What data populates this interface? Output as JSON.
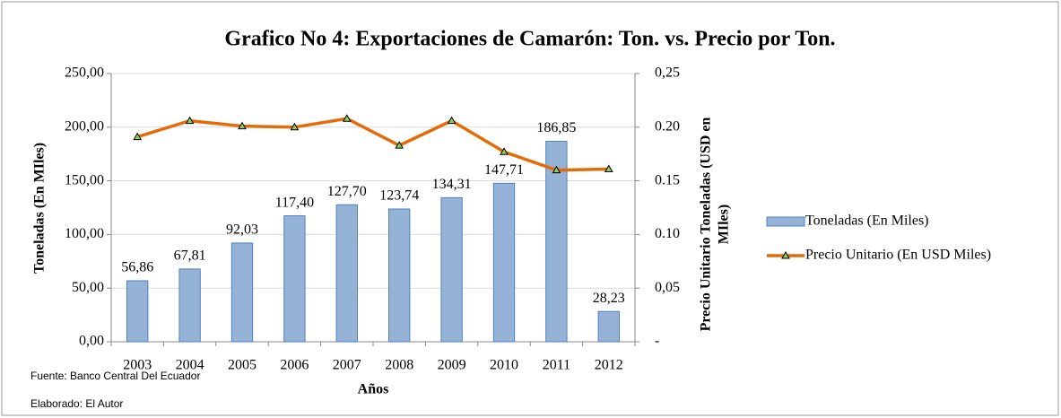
{
  "chart_data": {
    "type": "bar",
    "title": "Grafico No 4: Exportaciones de Camarón: Ton. vs. Precio por Ton.",
    "ylabel": "Toneladas (En MIles)",
    "y2label": [
      "Precio Unitario Toneladas (USD en",
      "MIles)"
    ],
    "xlabel": "Años",
    "annotations": [
      "Fuente: Banco Central Del Ecuador",
      "Elaborado: El Autor"
    ],
    "categories": [
      "2003",
      "2004",
      "2005",
      "2006",
      "2007",
      "2008",
      "2009",
      "2010",
      "2011",
      "2012"
    ],
    "series": [
      {
        "name": "Toneladas (En Miles)",
        "type": "bar",
        "color": "#95b3d7",
        "stroke": "#4f81bd",
        "values": [
          56.86,
          67.81,
          92.03,
          117.4,
          127.7,
          123.74,
          134.31,
          147.71,
          186.85,
          28.23
        ],
        "value_labels": [
          "56,86",
          "67,81",
          "92,03",
          "117,40",
          "127,70",
          "123,74",
          "134,31",
          "147,71",
          "186,85",
          "28,23"
        ]
      },
      {
        "name": "Precio Unitario (En USD Miles)",
        "type": "line",
        "axis": "y2",
        "color": "#e36c09",
        "marker_color": "#92d050",
        "values": [
          0.191,
          0.206,
          0.201,
          0.2,
          0.208,
          0.183,
          0.206,
          0.177,
          0.16,
          0.161
        ]
      }
    ],
    "ylim": [
      0,
      250
    ],
    "yticks": [
      {
        "value": 0,
        "label": "0,00"
      },
      {
        "value": 50,
        "label": "50,00"
      },
      {
        "value": 100,
        "label": "100,00"
      },
      {
        "value": 150,
        "label": "150,00"
      },
      {
        "value": 200,
        "label": "200,00"
      },
      {
        "value": 250,
        "label": "250,00"
      }
    ],
    "y2lim": [
      0,
      0.25
    ],
    "y2ticks": [
      {
        "value": 0,
        "label": "-"
      },
      {
        "value": 0.05,
        "label": "0,05"
      },
      {
        "value": 0.1,
        "label": "0.10"
      },
      {
        "value": 0.15,
        "label": "0.15"
      },
      {
        "value": 0.2,
        "label": "0.20"
      },
      {
        "value": 0.25,
        "label": "0,25"
      }
    ],
    "grid": true,
    "legend": "right"
  }
}
